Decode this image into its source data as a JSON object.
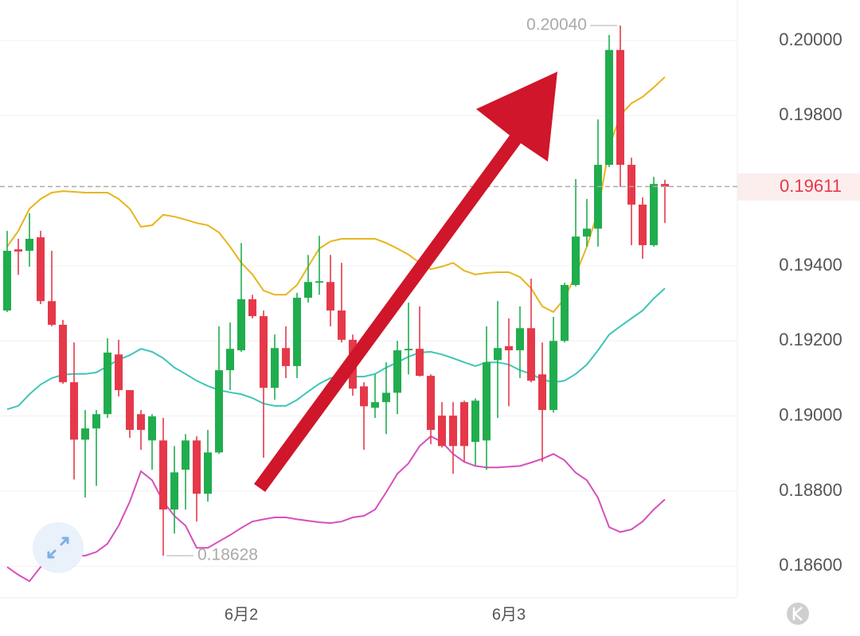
{
  "chart_data": {
    "type": "candlestick",
    "categories": [
      null,
      null,
      null,
      null,
      null,
      null,
      null,
      null,
      null,
      null,
      null,
      null,
      null,
      null,
      null,
      null,
      null,
      null,
      null,
      null,
      null,
      "6月2",
      null,
      null,
      null,
      null,
      null,
      null,
      null,
      null,
      null,
      null,
      null,
      null,
      null,
      null,
      null,
      null,
      null,
      null,
      null,
      null,
      null,
      null,
      null,
      "6月3",
      null,
      null,
      null,
      null,
      null,
      null,
      null,
      null,
      null,
      null,
      null,
      null,
      null,
      null
    ],
    "open": [
      0.19281,
      0.19444,
      0.1944,
      0.19476,
      0.19306,
      0.19243,
      0.1909,
      0.18937,
      0.18967,
      0.19005,
      0.19164,
      0.19069,
      0.19005,
      0.18935,
      0.18935,
      0.18751,
      0.18857,
      0.18935,
      0.18793,
      0.18903,
      0.19122,
      0.19175,
      0.19311,
      0.19266,
      0.19075,
      0.19181,
      0.19133,
      0.19315,
      0.19355,
      0.19357,
      0.19281,
      0.19203,
      0.19079,
      0.19022,
      0.19037,
      0.19062,
      0.19175,
      0.19179,
      0.19107,
      0.19001,
      0.19001,
      0.19037,
      0.18931,
      0.18935,
      0.19149,
      0.19186,
      0.19175,
      0.19234,
      0.19111,
      0.19016,
      0.192,
      0.19349,
      0.19478,
      0.19499,
      0.19669,
      0.19975,
      0.19669,
      0.19563,
      0.19455,
      0.19618
    ],
    "high": [
      0.19493,
      0.19472,
      0.1954,
      0.19493,
      0.1944,
      0.19256,
      0.19196,
      0.19016,
      0.19016,
      0.19207,
      0.19203,
      0.19069,
      0.19016,
      0.19005,
      0.18995,
      0.1892,
      0.18952,
      0.18946,
      0.18963,
      0.19239,
      0.19249,
      0.19461,
      0.19323,
      0.19281,
      0.19217,
      0.19239,
      0.19328,
      0.19429,
      0.1948,
      0.19429,
      0.19408,
      0.19217,
      0.1909,
      0.19111,
      0.19143,
      0.192,
      0.19302,
      0.19292,
      0.19111,
      0.19037,
      0.19037,
      0.19041,
      0.19047,
      0.19239,
      0.19306,
      0.1926,
      0.19292,
      0.19366,
      0.19196,
      0.19264,
      0.19355,
      0.19631,
      0.19578,
      0.1979,
      0.20015,
      0.2004,
      0.19688,
      0.19582,
      0.19637,
      0.19629
    ],
    "low": [
      0.19277,
      0.19376,
      0.19398,
      0.19298,
      0.19239,
      0.19086,
      0.18831,
      0.18783,
      0.18814,
      0.18995,
      0.19052,
      0.18942,
      0.1891,
      0.18857,
      0.18628,
      0.18687,
      0.18751,
      0.18719,
      0.18772,
      0.18899,
      0.19069,
      0.19171,
      0.1926,
      0.18889,
      0.19043,
      0.19101,
      0.19101,
      0.19302,
      0.19323,
      0.19239,
      0.19196,
      0.19054,
      0.1891,
      0.18995,
      0.18952,
      0.19005,
      0.19111,
      0.19105,
      0.18925,
      0.18916,
      0.18846,
      0.18878,
      0.18867,
      0.18857,
      0.18995,
      0.19026,
      0.19101,
      0.1909,
      0.18878,
      0.19009,
      0.19196,
      0.19345,
      0.19451,
      0.19451,
      0.19663,
      0.1961,
      0.19455,
      0.19419,
      0.19451,
      0.19514
    ],
    "close": [
      0.1944,
      0.19438,
      0.19472,
      0.19306,
      0.19243,
      0.1909,
      0.18937,
      0.18967,
      0.19005,
      0.19169,
      0.19069,
      0.18963,
      0.18963,
      0.18999,
      0.18751,
      0.1885,
      0.18935,
      0.18793,
      0.18903,
      0.19122,
      0.19179,
      0.19311,
      0.19266,
      0.19075,
      0.19181,
      0.19133,
      0.19315,
      0.19357,
      0.19359,
      0.19281,
      0.19203,
      0.19073,
      0.19026,
      0.19037,
      0.19062,
      0.19175,
      0.19179,
      0.19107,
      0.18963,
      0.1892,
      0.1892,
      0.1892,
      0.19041,
      0.19143,
      0.19181,
      0.19175,
      0.19234,
      0.19094,
      0.19016,
      0.192,
      0.19349,
      0.19478,
      0.19499,
      0.19669,
      0.19975,
      0.19669,
      0.19563,
      0.19455,
      0.19618,
      0.19611
    ],
    "up_color": "#20ad4e",
    "down_color": "#e5394a",
    "lines": [
      {
        "color": "#e8b51c",
        "values": [
          0.19451,
          0.19493,
          0.19552,
          0.19578,
          0.19595,
          0.19599,
          0.19597,
          0.19595,
          0.19595,
          0.19595,
          0.19578,
          0.19552,
          0.19504,
          0.19508,
          0.19536,
          0.19531,
          0.19523,
          0.19514,
          0.19508,
          0.19489,
          0.19451,
          0.19408,
          0.19377,
          0.19334,
          0.19323,
          0.19323,
          0.19349,
          0.19398,
          0.19446,
          0.19465,
          0.19472,
          0.19472,
          0.19472,
          0.19472,
          0.19461,
          0.19446,
          0.1943,
          0.19408,
          0.19391,
          0.19398,
          0.19408,
          0.19387,
          0.19377,
          0.19381,
          0.19383,
          0.19383,
          0.1937,
          0.1934,
          0.19292,
          0.19277,
          0.19313,
          0.19377,
          0.19451,
          0.19546,
          0.19716,
          0.19801,
          0.19833,
          0.1985,
          0.19875,
          0.19903
        ]
      },
      {
        "color": "#3ec6b6",
        "values": [
          0.19018,
          0.19027,
          0.19058,
          0.19084,
          0.19101,
          0.1911,
          0.19112,
          0.19112,
          0.19116,
          0.19133,
          0.1915,
          0.19162,
          0.19179,
          0.19171,
          0.19154,
          0.19129,
          0.19112,
          0.19094,
          0.1908,
          0.19069,
          0.19063,
          0.19058,
          0.19048,
          0.19033,
          0.19027,
          0.19027,
          0.19043,
          0.19065,
          0.19086,
          0.19101,
          0.19107,
          0.19105,
          0.19105,
          0.19112,
          0.19129,
          0.19143,
          0.19158,
          0.19169,
          0.19171,
          0.19164,
          0.19154,
          0.19143,
          0.19133,
          0.19143,
          0.19143,
          0.19137,
          0.19122,
          0.19112,
          0.19097,
          0.1909,
          0.19094,
          0.19112,
          0.19137,
          0.19175,
          0.19217,
          0.19239,
          0.1926,
          0.19281,
          0.19313,
          0.1934
        ]
      },
      {
        "color": "#d64fbe",
        "values": [
          0.18598,
          0.18577,
          0.1856,
          0.18598,
          0.18613,
          0.18613,
          0.18628,
          0.18628,
          0.18638,
          0.1866,
          0.18708,
          0.18772,
          0.18853,
          0.18829,
          0.18772,
          0.18734,
          0.18708,
          0.18649,
          0.18649,
          0.18666,
          0.18683,
          0.18702,
          0.18719,
          0.18725,
          0.1873,
          0.1873,
          0.18725,
          0.18721,
          0.18717,
          0.18715,
          0.18719,
          0.1873,
          0.18734,
          0.18751,
          0.18797,
          0.18846,
          0.18874,
          0.1892,
          0.18946,
          0.18931,
          0.18899,
          0.18878,
          0.18867,
          0.18863,
          0.18863,
          0.18865,
          0.18867,
          0.18876,
          0.18886,
          0.18899,
          0.18882,
          0.18849,
          0.18829,
          0.18782,
          0.18704,
          0.18691,
          0.18698,
          0.18719,
          0.18751,
          0.18778
        ]
      }
    ],
    "ylim": [
      0.18518,
      0.20108
    ],
    "yticks": [
      {
        "value": 0.2,
        "label": "0.20000"
      },
      {
        "value": 0.198,
        "label": "0.19800"
      },
      {
        "value": 0.194,
        "label": "0.19400"
      },
      {
        "value": 0.192,
        "label": "0.19200"
      },
      {
        "value": 0.19,
        "label": "0.19000"
      },
      {
        "value": 0.188,
        "label": "0.18800"
      },
      {
        "value": 0.186,
        "label": "0.18600"
      }
    ],
    "grid": true,
    "current_price": 0.19611,
    "high_label": {
      "value": 0.2004,
      "label": "0.20040"
    },
    "low_label": 0.18628
  }
}
